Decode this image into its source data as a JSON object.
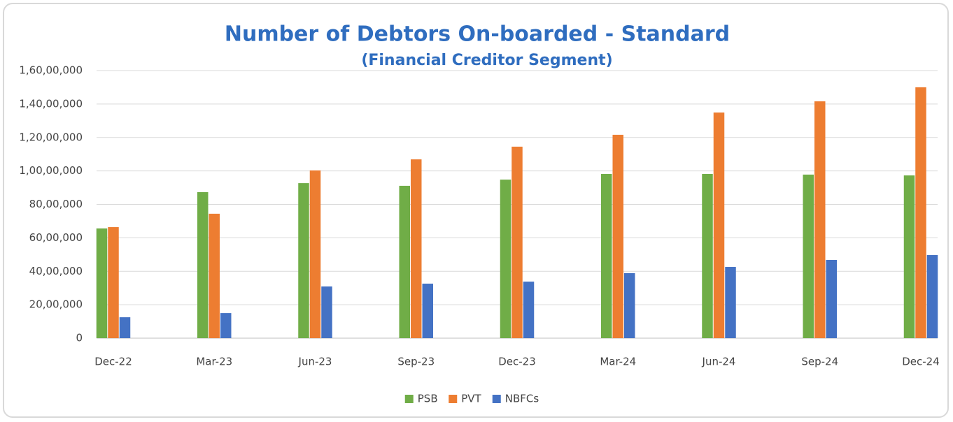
{
  "chart_data": {
    "type": "bar",
    "title": "Number of Debtors On-boarded - Standard",
    "subtitle": "(Financial Creditor Segment)",
    "categories": [
      "Dec-22",
      "Mar-23",
      "Jun-23",
      "Sep-23",
      "Dec-23",
      "Mar-24",
      "Jun-24",
      "Sep-24",
      "Dec-24"
    ],
    "series": [
      {
        "name": "PSB",
        "color": "#70ad47",
        "values": [
          6560000,
          8730000,
          9270000,
          9110000,
          9480000,
          9820000,
          9820000,
          9780000,
          9730000
        ]
      },
      {
        "name": "PVT",
        "color": "#ed7d31",
        "values": [
          6640000,
          7440000,
          10030000,
          10690000,
          11450000,
          12160000,
          13490000,
          14160000,
          15000000
        ]
      },
      {
        "name": "NBFCs",
        "color": "#4472c4",
        "values": [
          1250000,
          1500000,
          3090000,
          3260000,
          3380000,
          3890000,
          4260000,
          4680000,
          4970000
        ]
      }
    ],
    "ylim": [
      0,
      16000000
    ],
    "yticks": [
      0,
      {
        "value": 2000000,
        "label": "20,00,000"
      },
      {
        "value": 4000000,
        "label": "40,00,000"
      },
      {
        "value": 6000000,
        "label": "60,00,000"
      },
      {
        "value": 8000000,
        "label": "80,00,000"
      },
      {
        "value": 10000000,
        "label": "1,00,00,000"
      },
      {
        "value": 12000000,
        "label": "1,20,00,000"
      },
      {
        "value": 14000000,
        "label": "1,40,00,000"
      },
      {
        "value": 16000000,
        "label": "1,60,00,000"
      }
    ],
    "grid": true,
    "legend": "bottom"
  }
}
